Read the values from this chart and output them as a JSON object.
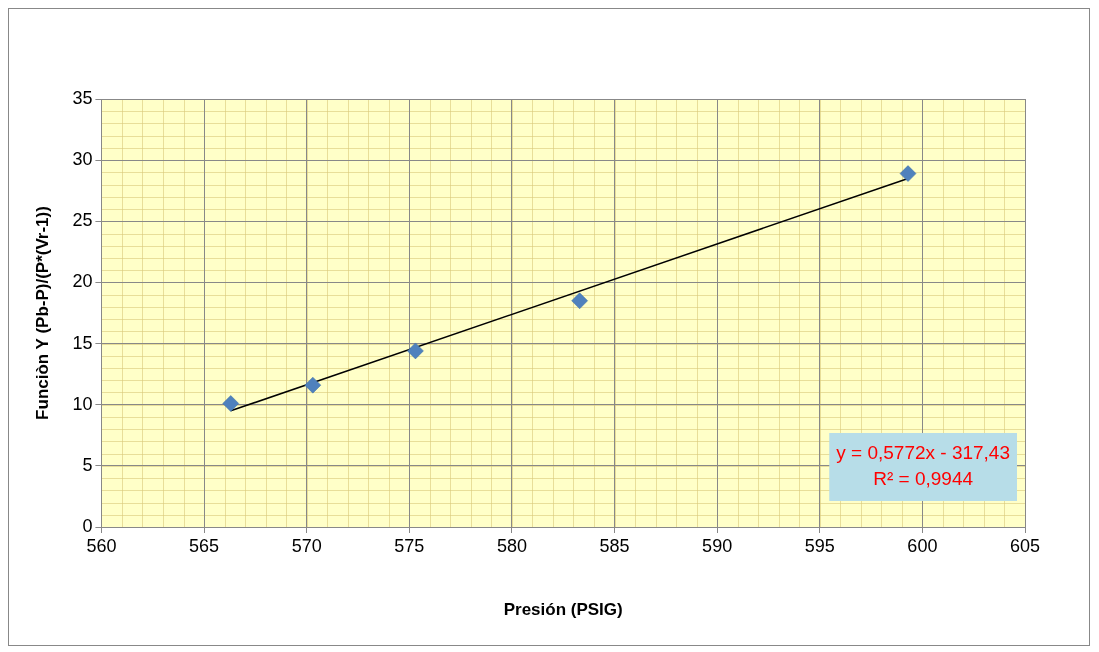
{
  "chart_data": {
    "type": "scatter",
    "xlabel": "Presión (PSIG)",
    "ylabel": "Funciòn Y (Pb-P)/(P*(Vr-1))",
    "xlim": [
      560,
      605
    ],
    "xticks": [
      560,
      565,
      570,
      575,
      580,
      585,
      590,
      595,
      600,
      605
    ],
    "ylim": [
      0,
      35
    ],
    "yticks": [
      0,
      5,
      10,
      15,
      20,
      25,
      30,
      35
    ],
    "grid": true,
    "legend": false,
    "marker": "diamond",
    "series": [
      {
        "color": "#4f81bd",
        "x": [
          566.3,
          570.3,
          575.3,
          583.3,
          599.3
        ],
        "values": [
          10.1,
          11.6,
          14.4,
          18.5,
          28.9
        ]
      },
      {
        "type": "line",
        "color": "#000000",
        "marker": "none",
        "line_style": "solid",
        "x": [
          566.3,
          599.3
        ],
        "values": [
          9.5,
          28.5
        ]
      }
    ],
    "annotations": [
      "y = 0,5772x - 317,43",
      "R² = 0,9944"
    ]
  }
}
